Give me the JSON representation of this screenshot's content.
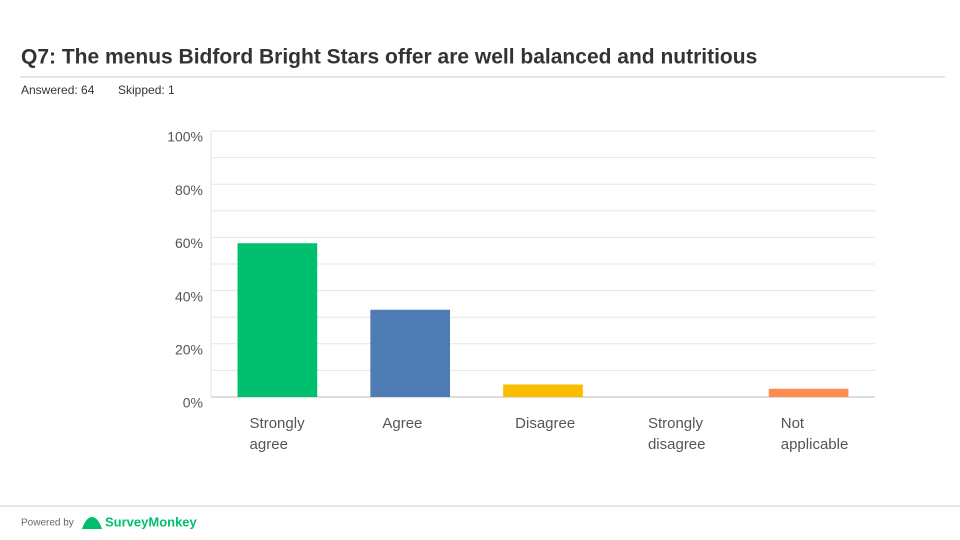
{
  "chart_data": {
    "type": "bar",
    "title": "Q7:  The menus Bidford Bright Stars offer are well balanced and nutritious",
    "answered": "Answered: 64",
    "skipped": "Skipped: 1",
    "categories": [
      [
        "Strongly",
        "agree"
      ],
      [
        "Agree"
      ],
      [
        "Disagree"
      ],
      [
        "Strongly",
        "disagree"
      ],
      [
        "Not",
        "applicable"
      ]
    ],
    "values": [
      57.8,
      32.8,
      4.7,
      0,
      3.1
    ],
    "colors": [
      "#00bf6f",
      "#507cb6",
      "#f9be00",
      "#6bc8cd",
      "#ff8b4f"
    ],
    "ylim": [
      0,
      100
    ],
    "yticks": [
      {
        "value": 0,
        "label": "0%"
      },
      {
        "value": 20,
        "label": "20%"
      },
      {
        "value": 40,
        "label": "40%"
      },
      {
        "value": 60,
        "label": "60%"
      },
      {
        "value": 80,
        "label": "80%"
      },
      {
        "value": 100,
        "label": "100%"
      }
    ],
    "minor_yticks": [
      10,
      30,
      50,
      70,
      90
    ],
    "grid": true
  },
  "footer": {
    "powered_by": "Powered by",
    "brand": "SurveyMonkey"
  }
}
